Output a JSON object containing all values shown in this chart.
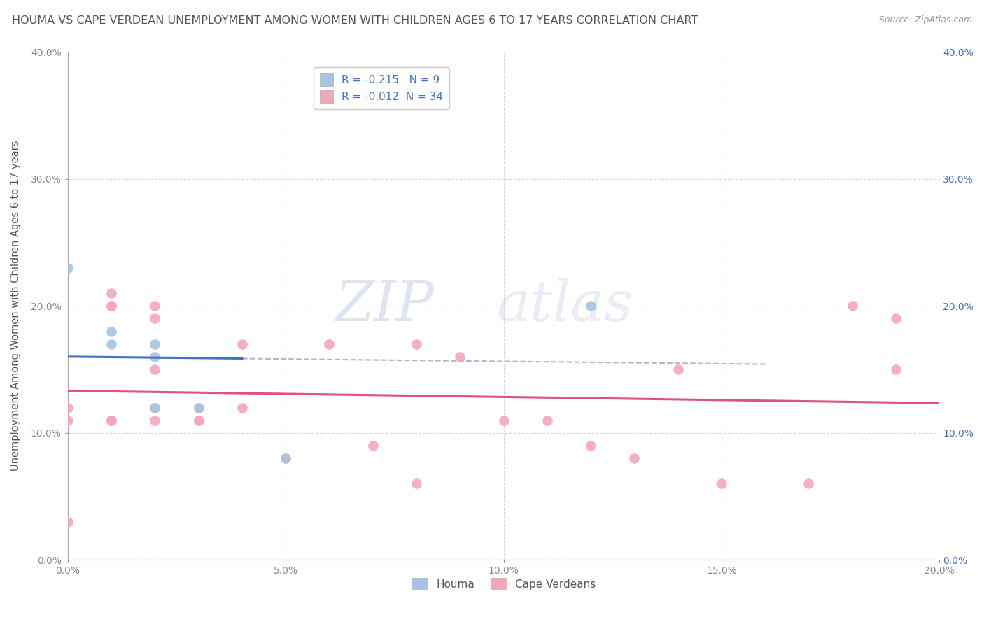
{
  "title": "HOUMA VS CAPE VERDEAN UNEMPLOYMENT AMONG WOMEN WITH CHILDREN AGES 6 TO 17 YEARS CORRELATION CHART",
  "source": "Source: ZipAtlas.com",
  "ylabel": "Unemployment Among Women with Children Ages 6 to 17 years",
  "xlim": [
    0.0,
    0.2
  ],
  "ylim": [
    0.0,
    0.4
  ],
  "xticks": [
    0.0,
    0.05,
    0.1,
    0.15,
    0.2
  ],
  "yticks": [
    0.0,
    0.1,
    0.2,
    0.3,
    0.4
  ],
  "houma_x": [
    0.0,
    0.01,
    0.01,
    0.02,
    0.02,
    0.02,
    0.03,
    0.05,
    0.12
  ],
  "houma_y": [
    0.23,
    0.17,
    0.18,
    0.16,
    0.17,
    0.12,
    0.12,
    0.08,
    0.2
  ],
  "cape_x": [
    0.0,
    0.0,
    0.0,
    0.01,
    0.01,
    0.01,
    0.01,
    0.01,
    0.02,
    0.02,
    0.02,
    0.02,
    0.02,
    0.03,
    0.03,
    0.03,
    0.04,
    0.04,
    0.05,
    0.06,
    0.07,
    0.08,
    0.08,
    0.09,
    0.1,
    0.11,
    0.12,
    0.13,
    0.14,
    0.15,
    0.17,
    0.18,
    0.19,
    0.19
  ],
  "cape_y": [
    0.12,
    0.11,
    0.03,
    0.21,
    0.2,
    0.2,
    0.11,
    0.11,
    0.2,
    0.19,
    0.15,
    0.12,
    0.11,
    0.12,
    0.11,
    0.11,
    0.17,
    0.12,
    0.08,
    0.17,
    0.09,
    0.17,
    0.06,
    0.16,
    0.11,
    0.11,
    0.09,
    0.08,
    0.15,
    0.06,
    0.06,
    0.2,
    0.15,
    0.19
  ],
  "houma_color": "#a8c4e0",
  "cape_color": "#f4a7b9",
  "houma_R": -0.215,
  "houma_N": 9,
  "cape_R": -0.012,
  "cape_N": 34,
  "legend_houma": "Houma",
  "legend_cape": "Cape Verdeans",
  "watermark_zip": "ZIP",
  "watermark_atlas": "atlas",
  "background_color": "#ffffff",
  "grid_color": "#cccccc",
  "title_color": "#555555",
  "tick_color": "#4472c4",
  "tick_color_black": "#888888",
  "houma_trend_color": "#4472c4",
  "cape_trend_color": "#e05080",
  "houma_trend_dash_color": "#aaaacc",
  "dot_size": 110,
  "right_tick_color": "#4472c4"
}
